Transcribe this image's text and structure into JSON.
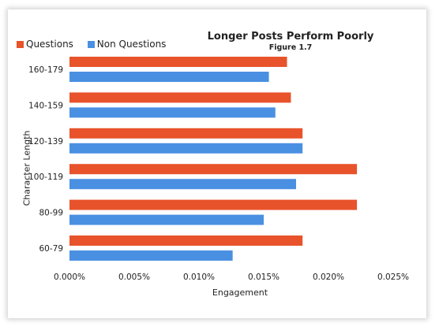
{
  "chart_data": {
    "type": "bar",
    "orientation": "horizontal",
    "title": "Longer Posts Perform Poorly",
    "subtitle": "Figure 1.7",
    "xlabel": "Engagement",
    "ylabel": "Character Length",
    "categories": [
      "60-79",
      "80-99",
      "100-119",
      "120-139",
      "140-159",
      "160-179"
    ],
    "series": [
      {
        "name": "Questions",
        "color": "#e8532b",
        "values": [
          0.018,
          0.0222,
          0.0222,
          0.018,
          0.0171,
          0.0168
        ]
      },
      {
        "name": "Non Questions",
        "color": "#4a90e2",
        "values": [
          0.0126,
          0.015,
          0.0175,
          0.018,
          0.0159,
          0.0154
        ]
      }
    ],
    "xlim": [
      0,
      0.025
    ],
    "xticks": [
      "0.000%",
      "0.005%",
      "0.010%",
      "0.015%",
      "0.020%",
      "0.025%"
    ],
    "grid": false,
    "legend_position": "top-left"
  }
}
